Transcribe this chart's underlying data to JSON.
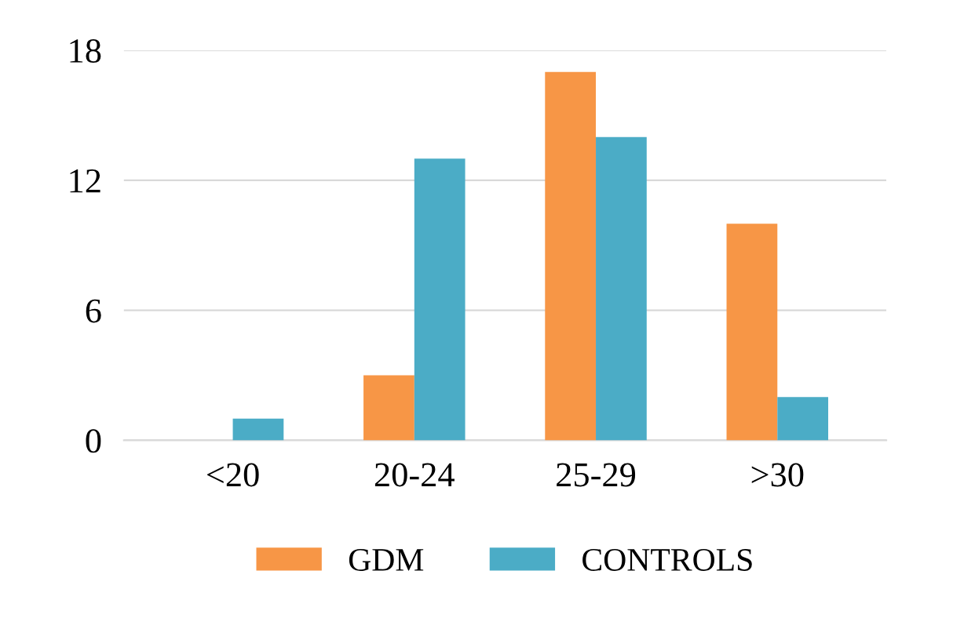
{
  "chart_data": {
    "type": "bar",
    "categories": [
      "<20",
      "20-24",
      "25-29",
      ">30"
    ],
    "series": [
      {
        "name": "GDM",
        "color": "#f79646",
        "values": [
          0,
          3,
          17,
          10
        ]
      },
      {
        "name": "CONTROLS",
        "color": "#4bacc6",
        "values": [
          1,
          13,
          14,
          2
        ]
      }
    ],
    "ylim": [
      0,
      18
    ],
    "yticks": [
      0,
      6,
      12,
      18
    ],
    "grid": "y",
    "legend": "bottom"
  }
}
